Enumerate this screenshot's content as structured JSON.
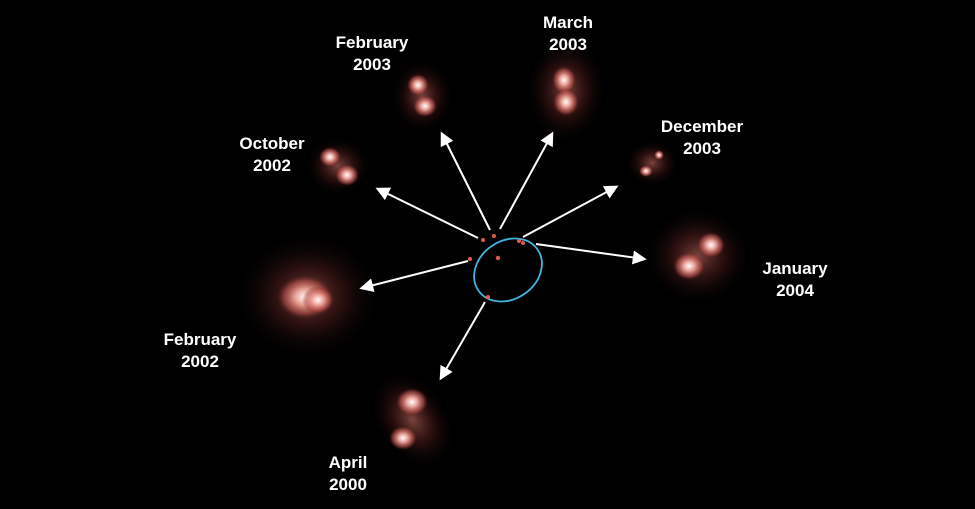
{
  "observations": [
    {
      "id": "apr-2000",
      "month": "April",
      "year": "2000"
    },
    {
      "id": "feb-2002",
      "month": "February",
      "year": "2002"
    },
    {
      "id": "oct-2002",
      "month": "October",
      "year": "2002"
    },
    {
      "id": "feb-2003",
      "month": "February",
      "year": "2003"
    },
    {
      "id": "mar-2003",
      "month": "March",
      "year": "2003"
    },
    {
      "id": "dec-2003",
      "month": "December",
      "year": "2003"
    },
    {
      "id": "jan-2004",
      "month": "January",
      "year": "2004"
    }
  ],
  "colors": {
    "background": "#000000",
    "orbit": "#3fb6e0",
    "star_glow": "#c4605a",
    "star_core": "#ffffff",
    "arrow": "#ffffff",
    "orbit_dot": "#e05a50"
  }
}
